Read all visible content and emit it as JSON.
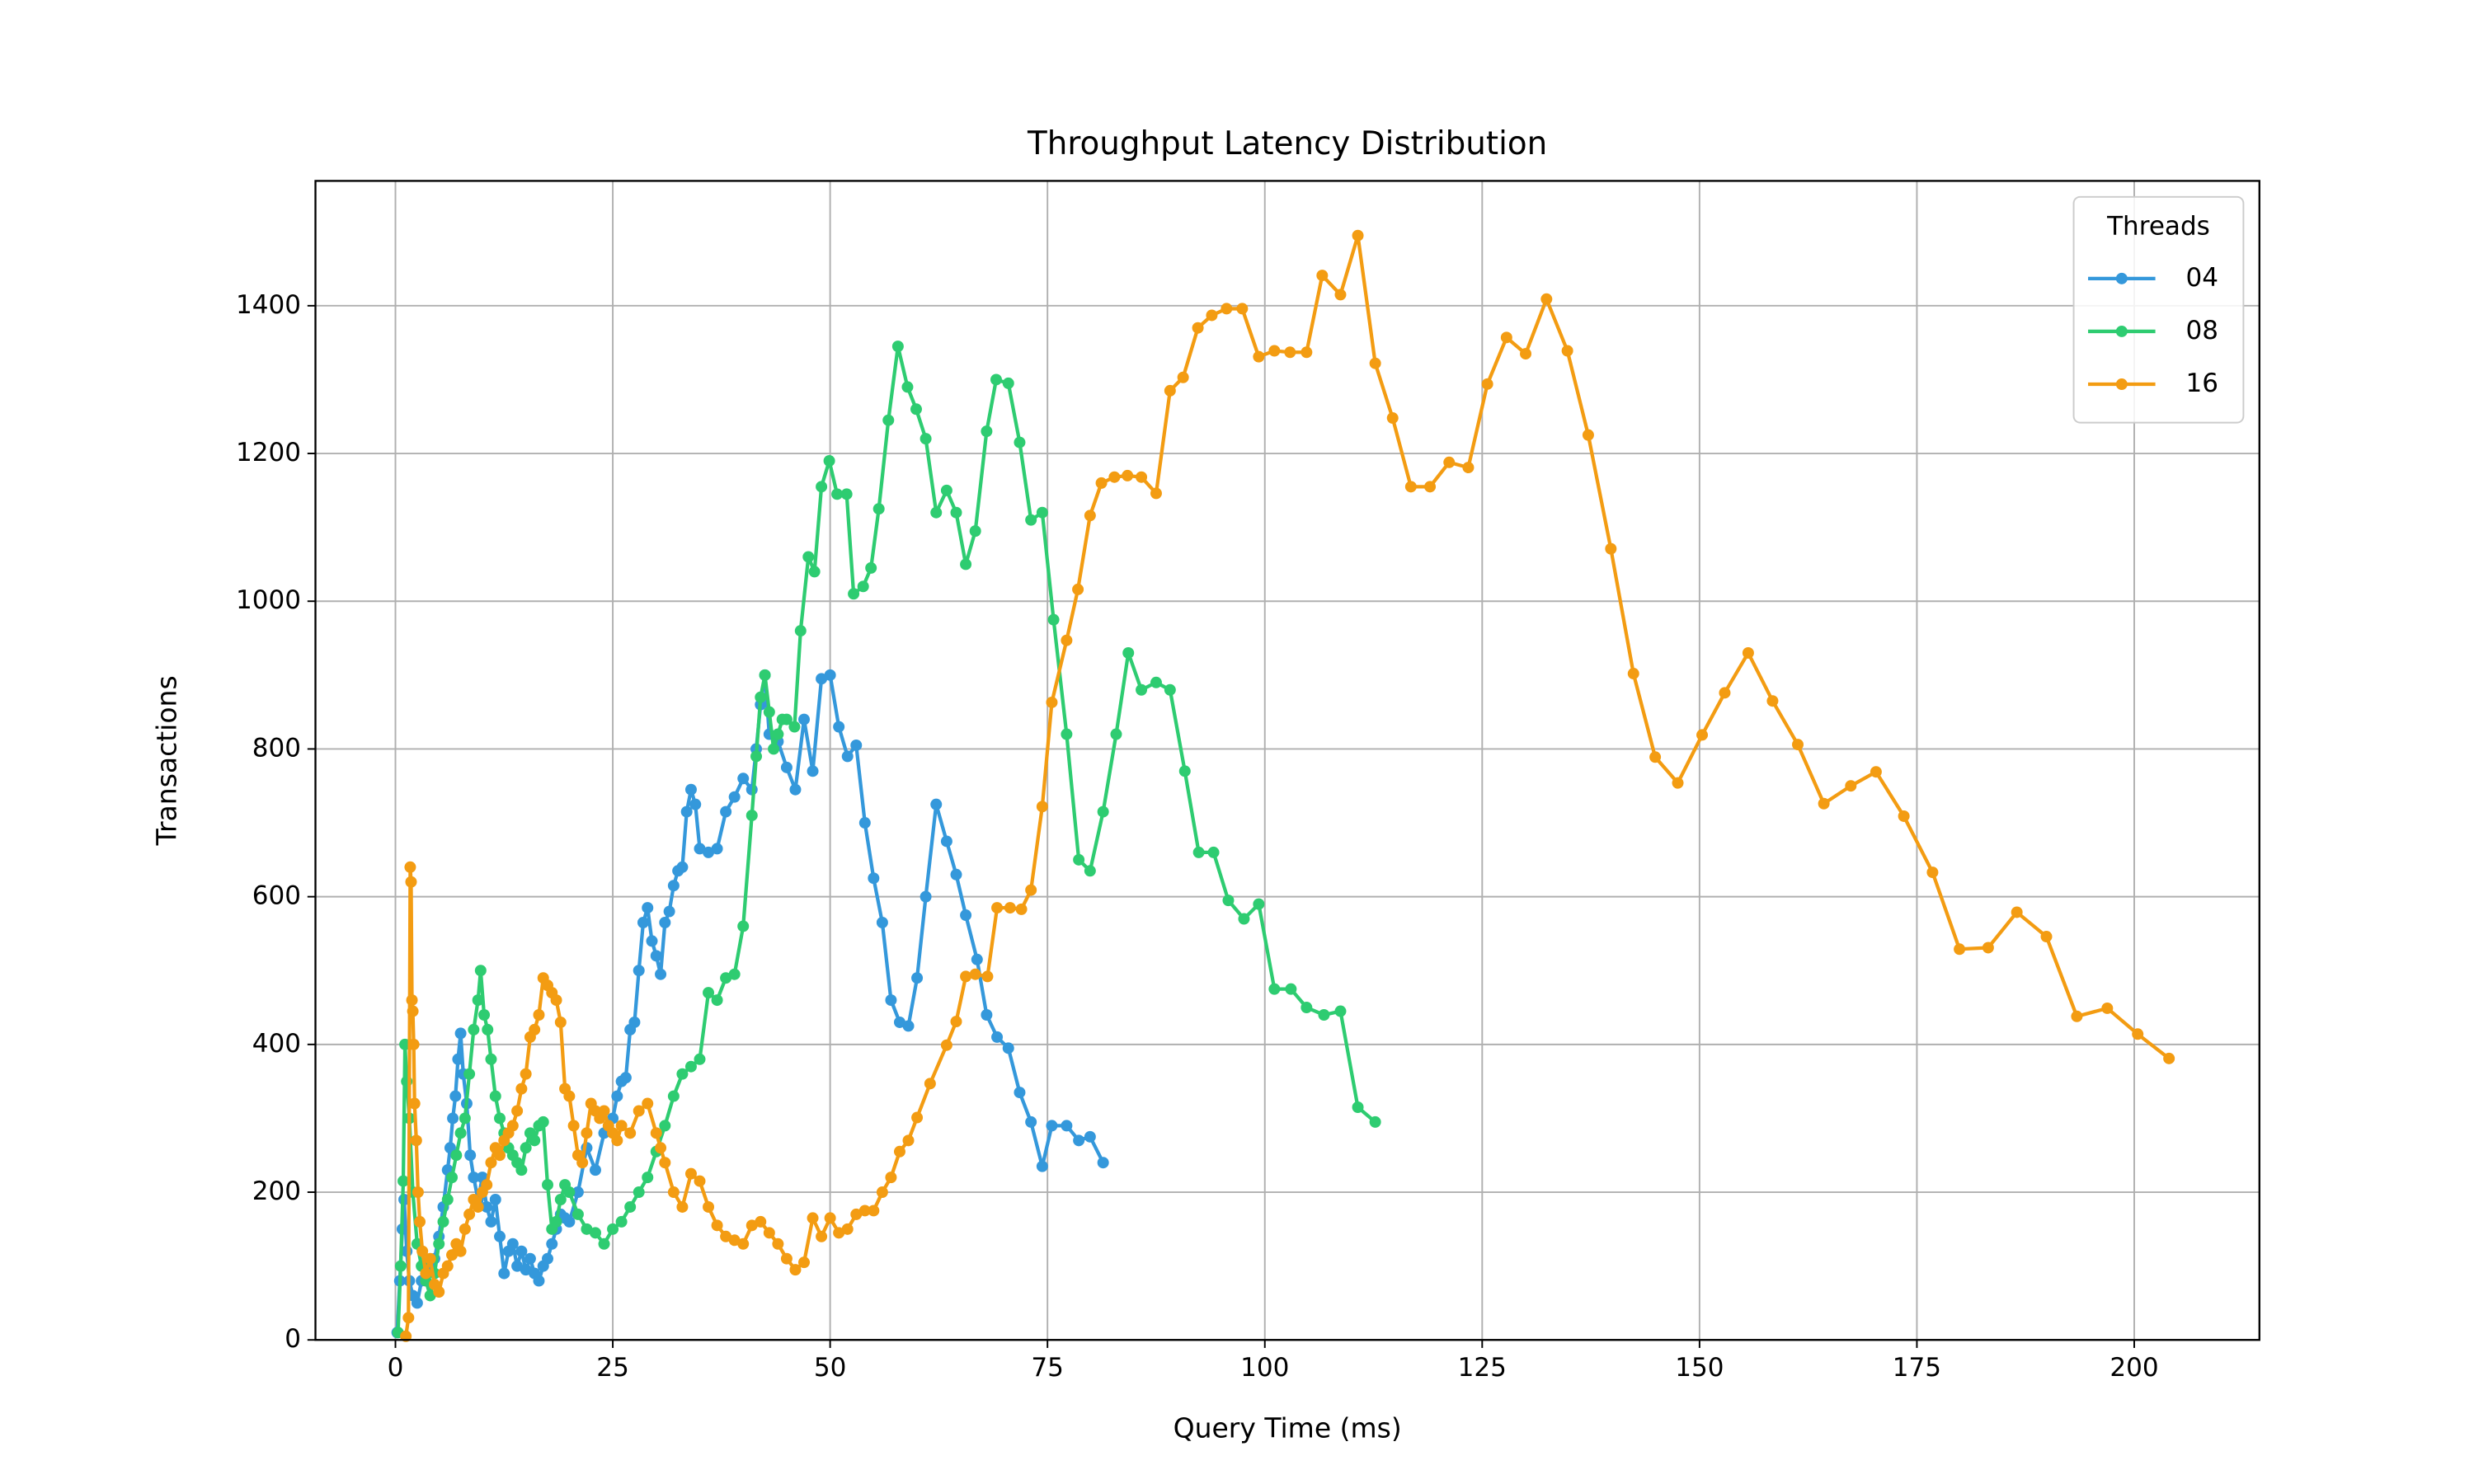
{
  "chart_data": {
    "type": "line",
    "title": "Throughput Latency Distribution",
    "x_label": "Query Time (ms)",
    "y_label": "Transactions",
    "xlim": [
      -9.2,
      214.4
    ],
    "ylim": [
      0,
      1569
    ],
    "xticks": [
      0,
      25,
      50,
      75,
      100,
      125,
      150,
      175,
      200
    ],
    "yticks": [
      0,
      200,
      400,
      600,
      800,
      1000,
      1200,
      1400
    ],
    "grid": true,
    "legend_title": "Threads",
    "legend_position": "upper right",
    "series": [
      {
        "name": "04",
        "color": "#3498db",
        "x": [
          0.2,
          0.5,
          0.8,
          1,
          1.3,
          1.6,
          2,
          2.5,
          3,
          3.5,
          4,
          4.5,
          5,
          5.5,
          6,
          6.3,
          6.6,
          6.9,
          7.2,
          7.5,
          7.8,
          8.2,
          8.6,
          9,
          9.5,
          10,
          10.5,
          11,
          11.5,
          12,
          12.5,
          13,
          13.5,
          14,
          14.5,
          15,
          15.5,
          16,
          16.5,
          17,
          17.5,
          18,
          18.5,
          19,
          19.5,
          20,
          21,
          22,
          23,
          24,
          25,
          25.5,
          26,
          26.5,
          27,
          27.5,
          28,
          28.5,
          29,
          29.5,
          30,
          30.5,
          31,
          31.5,
          32,
          32.5,
          33,
          33.5,
          34,
          34.5,
          35,
          36,
          37,
          38,
          39,
          40,
          41,
          41.5,
          42,
          42.5,
          43,
          44,
          45,
          46,
          47,
          48,
          49,
          50,
          51,
          52,
          53,
          54,
          55,
          56,
          57,
          58,
          59,
          60,
          61,
          62.2,
          63.4,
          64.5,
          65.6,
          66.9,
          68,
          69.2,
          70.5,
          71.8,
          73.1,
          74.4,
          75.5,
          77.2,
          78.6,
          79.9,
          81.4
        ],
        "values": [
          10,
          80,
          150,
          190,
          120,
          80,
          60,
          50,
          80,
          90,
          100,
          110,
          140,
          180,
          230,
          260,
          300,
          330,
          380,
          415,
          360,
          320,
          250,
          220,
          190,
          220,
          180,
          160,
          190,
          140,
          90,
          120,
          130,
          100,
          120,
          95,
          110,
          90,
          80,
          100,
          110,
          130,
          150,
          170,
          165,
          160,
          200,
          260,
          230,
          280,
          300,
          330,
          350,
          355,
          420,
          430,
          500,
          565,
          585,
          540,
          520,
          495,
          565,
          580,
          615,
          635,
          640,
          715,
          745,
          725,
          665,
          660,
          665,
          715,
          735,
          760,
          745,
          800,
          860,
          900,
          820,
          810,
          775,
          745,
          840,
          770,
          895,
          900,
          830,
          790,
          805,
          700,
          625,
          565,
          460,
          430,
          425,
          490,
          600,
          725,
          675,
          630,
          575,
          515,
          440,
          410,
          395,
          335,
          295,
          235,
          290,
          290,
          270,
          275,
          240
        ]
      },
      {
        "name": "08",
        "color": "#2ecc71",
        "x": [
          0.3,
          0.6,
          0.9,
          1.1,
          1.3,
          1.6,
          2,
          2.5,
          3,
          3.5,
          4,
          4.5,
          5,
          5.5,
          6,
          6.5,
          7,
          7.5,
          8,
          8.5,
          9,
          9.5,
          9.8,
          10.2,
          10.6,
          11,
          11.5,
          12,
          12.5,
          13,
          13.5,
          14,
          14.5,
          15,
          15.5,
          16,
          16.5,
          17,
          17.5,
          18,
          18.5,
          19,
          19.5,
          20,
          21,
          22,
          23,
          24,
          25,
          26,
          27,
          28,
          29,
          30,
          31,
          32,
          33,
          34,
          35,
          36,
          37,
          38,
          39,
          40,
          41,
          41.5,
          42,
          42.5,
          43,
          43.5,
          44,
          44.5,
          45,
          45.9,
          46.6,
          47.5,
          48.2,
          49,
          49.9,
          50.8,
          51.9,
          52.7,
          53.8,
          54.7,
          55.6,
          56.7,
          57.8,
          58.9,
          59.9,
          61,
          62.2,
          63.4,
          64.5,
          65.6,
          66.7,
          68,
          69.1,
          70.5,
          71.8,
          73.1,
          74.4,
          75.7,
          77.2,
          78.6,
          79.9,
          81.4,
          82.9,
          84.3,
          85.8,
          87.5,
          89.1,
          90.8,
          92.4,
          94.1,
          95.8,
          97.6,
          99.3,
          101.1,
          103,
          104.8,
          106.8,
          108.7,
          110.7,
          112.7
        ],
        "values": [
          10,
          100,
          215,
          400,
          350,
          300,
          200,
          130,
          100,
          80,
          60,
          90,
          130,
          160,
          190,
          220,
          250,
          280,
          300,
          360,
          420,
          460,
          500,
          440,
          420,
          380,
          330,
          300,
          280,
          260,
          250,
          240,
          230,
          260,
          280,
          270,
          290,
          295,
          210,
          150,
          160,
          190,
          210,
          200,
          170,
          150,
          145,
          130,
          150,
          160,
          180,
          200,
          220,
          255,
          290,
          330,
          360,
          370,
          380,
          470,
          460,
          490,
          495,
          560,
          710,
          790,
          870,
          900,
          850,
          800,
          820,
          840,
          840,
          830,
          960,
          1060,
          1040,
          1155,
          1190,
          1145,
          1145,
          1010,
          1020,
          1045,
          1125,
          1245,
          1345,
          1290,
          1260,
          1220,
          1120,
          1150,
          1120,
          1050,
          1095,
          1230,
          1300,
          1295,
          1215,
          1110,
          1120,
          975,
          820,
          650,
          635,
          715,
          820,
          930,
          880,
          890,
          880,
          770,
          660,
          660,
          595,
          570,
          590,
          475,
          475,
          450,
          440,
          445,
          315,
          295
        ]
      },
      {
        "name": "16",
        "color": "#f39c12",
        "x": [
          1.2,
          1.5,
          1.7,
          1.8,
          1.9,
          2,
          2.1,
          2.2,
          2.4,
          2.6,
          2.8,
          3.1,
          3.5,
          4,
          4.5,
          5,
          5.5,
          6,
          6.5,
          7,
          7.5,
          8,
          8.5,
          9,
          9.5,
          10,
          10.5,
          11,
          11.5,
          12,
          12.5,
          13,
          13.5,
          14,
          14.5,
          15,
          15.5,
          16,
          16.5,
          17,
          17.5,
          18,
          18.5,
          19,
          19.5,
          20,
          20.5,
          21,
          21.5,
          22,
          22.5,
          23,
          23.5,
          24,
          24.5,
          25,
          25.5,
          26,
          27,
          28,
          29,
          30,
          30.5,
          31,
          32,
          33,
          34,
          35,
          36,
          37,
          38,
          39,
          40,
          41,
          42,
          43,
          44,
          45,
          46,
          47,
          48,
          49,
          50,
          51,
          52,
          53,
          54,
          55,
          56,
          57,
          58,
          59,
          60,
          61.5,
          63.4,
          64.5,
          65.6,
          66.7,
          68.1,
          69.2,
          70.7,
          72,
          73.1,
          74.4,
          75.5,
          77.2,
          78.5,
          79.9,
          81.2,
          82.7,
          84.2,
          85.8,
          87.5,
          89.1,
          90.6,
          92.3,
          93.9,
          95.6,
          97.4,
          99.3,
          101.1,
          102.9,
          104.8,
          106.6,
          108.7,
          110.7,
          112.7,
          114.7,
          116.8,
          119,
          121.2,
          123.4,
          125.6,
          127.8,
          130,
          132.4,
          134.8,
          137.2,
          139.8,
          142.4,
          144.9,
          147.5,
          150.3,
          152.9,
          155.6,
          158.4,
          161.3,
          164.3,
          167.4,
          170.3,
          173.5,
          176.8,
          179.9,
          183.2,
          186.5,
          189.9,
          193.4,
          196.9,
          200.4,
          204
        ],
        "values": [
          5,
          30,
          640,
          620,
          460,
          445,
          400,
          320,
          270,
          200,
          160,
          120,
          90,
          110,
          75,
          65,
          90,
          100,
          115,
          130,
          120,
          150,
          170,
          190,
          180,
          200,
          210,
          240,
          260,
          250,
          270,
          280,
          290,
          310,
          340,
          360,
          410,
          420,
          440,
          490,
          480,
          470,
          460,
          430,
          340,
          330,
          290,
          250,
          240,
          280,
          320,
          310,
          300,
          310,
          290,
          280,
          270,
          290,
          280,
          310,
          320,
          280,
          260,
          240,
          200,
          180,
          225,
          215,
          180,
          155,
          140,
          135,
          130,
          155,
          160,
          145,
          130,
          110,
          95,
          105,
          165,
          140,
          165,
          145,
          150,
          170,
          175,
          175,
          200,
          220,
          255,
          270,
          301,
          347,
          399,
          431,
          492,
          495,
          492,
          585,
          585,
          583,
          609,
          722,
          863,
          947,
          1016,
          1116,
          1160,
          1168,
          1170,
          1168,
          1146,
          1285,
          1303,
          1370,
          1387,
          1396,
          1396,
          1331,
          1339,
          1337,
          1337,
          1441,
          1415,
          1495,
          1322,
          1248,
          1155,
          1155,
          1188,
          1181,
          1294,
          1357,
          1335,
          1409,
          1339,
          1225,
          1071,
          902,
          789,
          754,
          819,
          876,
          930,
          865,
          806,
          726,
          750,
          769,
          709,
          633,
          529,
          531,
          579,
          546,
          438,
          449,
          414,
          381
        ]
      }
    ]
  }
}
